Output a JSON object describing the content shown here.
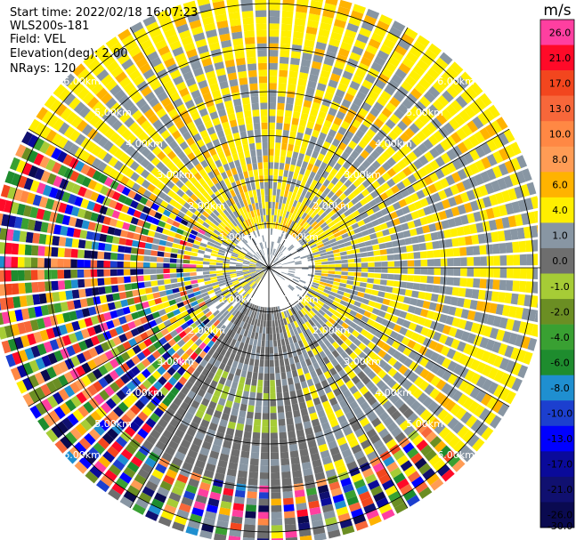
{
  "header": {
    "start_time": "Start time: 2022/02/18 16:07:23",
    "instrument": "WLS200s-181",
    "field": "Field: VEL",
    "elevation": "Elevation(deg): 2.00",
    "nrays": "NRays: 120"
  },
  "chart_data": {
    "type": "heatmap",
    "projection": "polar-ppi",
    "title": "",
    "range_rings_km": [
      1,
      2,
      3,
      4,
      5,
      6
    ],
    "range_ring_labels": [
      "1.00km",
      "2.00km",
      "3.00km",
      "4.00km",
      "5.00km",
      "6.00km"
    ],
    "max_range_km": 6.3,
    "n_rays": 120,
    "colorbar": {
      "unit": "m/s",
      "range": [
        -30,
        30
      ],
      "bins": [
        {
          "lo": 21,
          "hi": 30,
          "color": "#ff3fa0"
        },
        {
          "lo": 17,
          "hi": 21,
          "color": "#ff0a28"
        },
        {
          "lo": 13,
          "hi": 17,
          "color": "#f2461e"
        },
        {
          "lo": 10,
          "hi": 13,
          "color": "#f7673a"
        },
        {
          "lo": 8,
          "hi": 10,
          "color": "#ff8844"
        },
        {
          "lo": 6,
          "hi": 8,
          "color": "#ff9c55"
        },
        {
          "lo": 4,
          "hi": 6,
          "color": "#ffb300"
        },
        {
          "lo": 1,
          "hi": 4,
          "color": "#ffef00"
        },
        {
          "lo": 0,
          "hi": 1,
          "color": "#8896a3"
        },
        {
          "lo": -1,
          "hi": 0,
          "color": "#6e6e6e"
        },
        {
          "lo": -2,
          "hi": -1,
          "color": "#a6cc36"
        },
        {
          "lo": -4,
          "hi": -2,
          "color": "#6b8e23"
        },
        {
          "lo": -6,
          "hi": -4,
          "color": "#39a032"
        },
        {
          "lo": -8,
          "hi": -6,
          "color": "#1e8c2e"
        },
        {
          "lo": -10,
          "hi": -8,
          "color": "#1f8fd0"
        },
        {
          "lo": -13,
          "hi": -10,
          "color": "#1c3fcf"
        },
        {
          "lo": -17,
          "hi": -13,
          "color": "#0000ff"
        },
        {
          "lo": -21,
          "hi": -17,
          "color": "#0a0a9a"
        },
        {
          "lo": -26,
          "hi": -21,
          "color": "#101070"
        },
        {
          "lo": -30,
          "hi": -26,
          "color": "#0a0a50"
        }
      ],
      "tick_labels": [
        "26.0",
        "21.0",
        "17.0",
        "13.0",
        "10.0",
        "8.0",
        "6.0",
        "4.0",
        "1.0",
        "0.0",
        "-1.0",
        "-2.0",
        "-4.0",
        "-6.0",
        "-8.0",
        "-10.0",
        "-13.0",
        "-17.0",
        "-21.0",
        "-26.0",
        "-30.0"
      ]
    },
    "sectors": [
      {
        "from_deg": 300,
        "to_deg": 60,
        "r_km": [
          0.8,
          6.3
        ],
        "dominant": "#ffef00",
        "note": "north: mostly 1-4 m/s with gray"
      },
      {
        "from_deg": 60,
        "to_deg": 135,
        "r_km": [
          0.9,
          6.3
        ],
        "dominant": "#ffef00",
        "note": "east: gray streaks with yellow"
      },
      {
        "from_deg": 135,
        "to_deg": 165,
        "r_km": [
          4.8,
          6.3
        ],
        "dominant": "mixed",
        "note": "south-east outer noise"
      },
      {
        "from_deg": 165,
        "to_deg": 215,
        "r_km": [
          0.8,
          6.3
        ],
        "dominant": "#6e6e6e",
        "note": "south: gray with green patch"
      },
      {
        "from_deg": 215,
        "to_deg": 300,
        "r_km": [
          1.6,
          6.3
        ],
        "dominant": "mixed",
        "note": "west: colored noise"
      }
    ]
  }
}
